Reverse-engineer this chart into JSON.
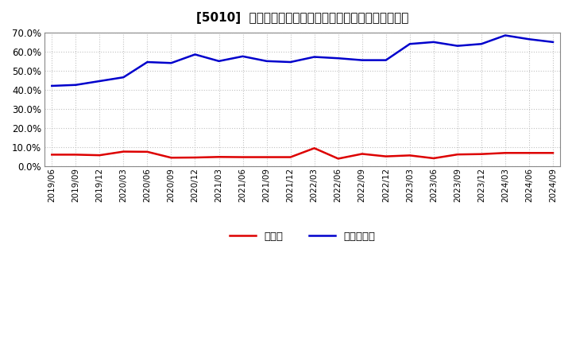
{
  "title": "[5010]  現預金、有利子負債の総資産に対する比率の推移",
  "x_labels": [
    "2019/06",
    "2019/09",
    "2019/12",
    "2020/03",
    "2020/06",
    "2020/09",
    "2020/12",
    "2021/03",
    "2021/06",
    "2021/09",
    "2021/12",
    "2022/03",
    "2022/06",
    "2022/09",
    "2022/12",
    "2023/03",
    "2023/06",
    "2023/09",
    "2023/12",
    "2024/03",
    "2024/06",
    "2024/09"
  ],
  "cash": [
    0.059,
    0.059,
    0.056,
    0.075,
    0.074,
    0.043,
    0.044,
    0.047,
    0.046,
    0.046,
    0.046,
    0.093,
    0.038,
    0.063,
    0.05,
    0.055,
    0.04,
    0.06,
    0.062,
    0.068,
    0.068,
    0.068
  ],
  "debt": [
    0.42,
    0.425,
    0.445,
    0.465,
    0.545,
    0.54,
    0.585,
    0.55,
    0.575,
    0.55,
    0.545,
    0.572,
    0.565,
    0.555,
    0.555,
    0.64,
    0.65,
    0.63,
    0.64,
    0.685,
    0.665,
    0.65
  ],
  "cash_color": "#dd0000",
  "debt_color": "#0000cc",
  "bg_color": "#ffffff",
  "grid_color": "#bbbbbb",
  "ylim": [
    0.0,
    0.7
  ],
  "yticks": [
    0.0,
    0.1,
    0.2,
    0.3,
    0.4,
    0.5,
    0.6,
    0.7
  ],
  "legend_cash": "現預金",
  "legend_debt": "有利子負債"
}
